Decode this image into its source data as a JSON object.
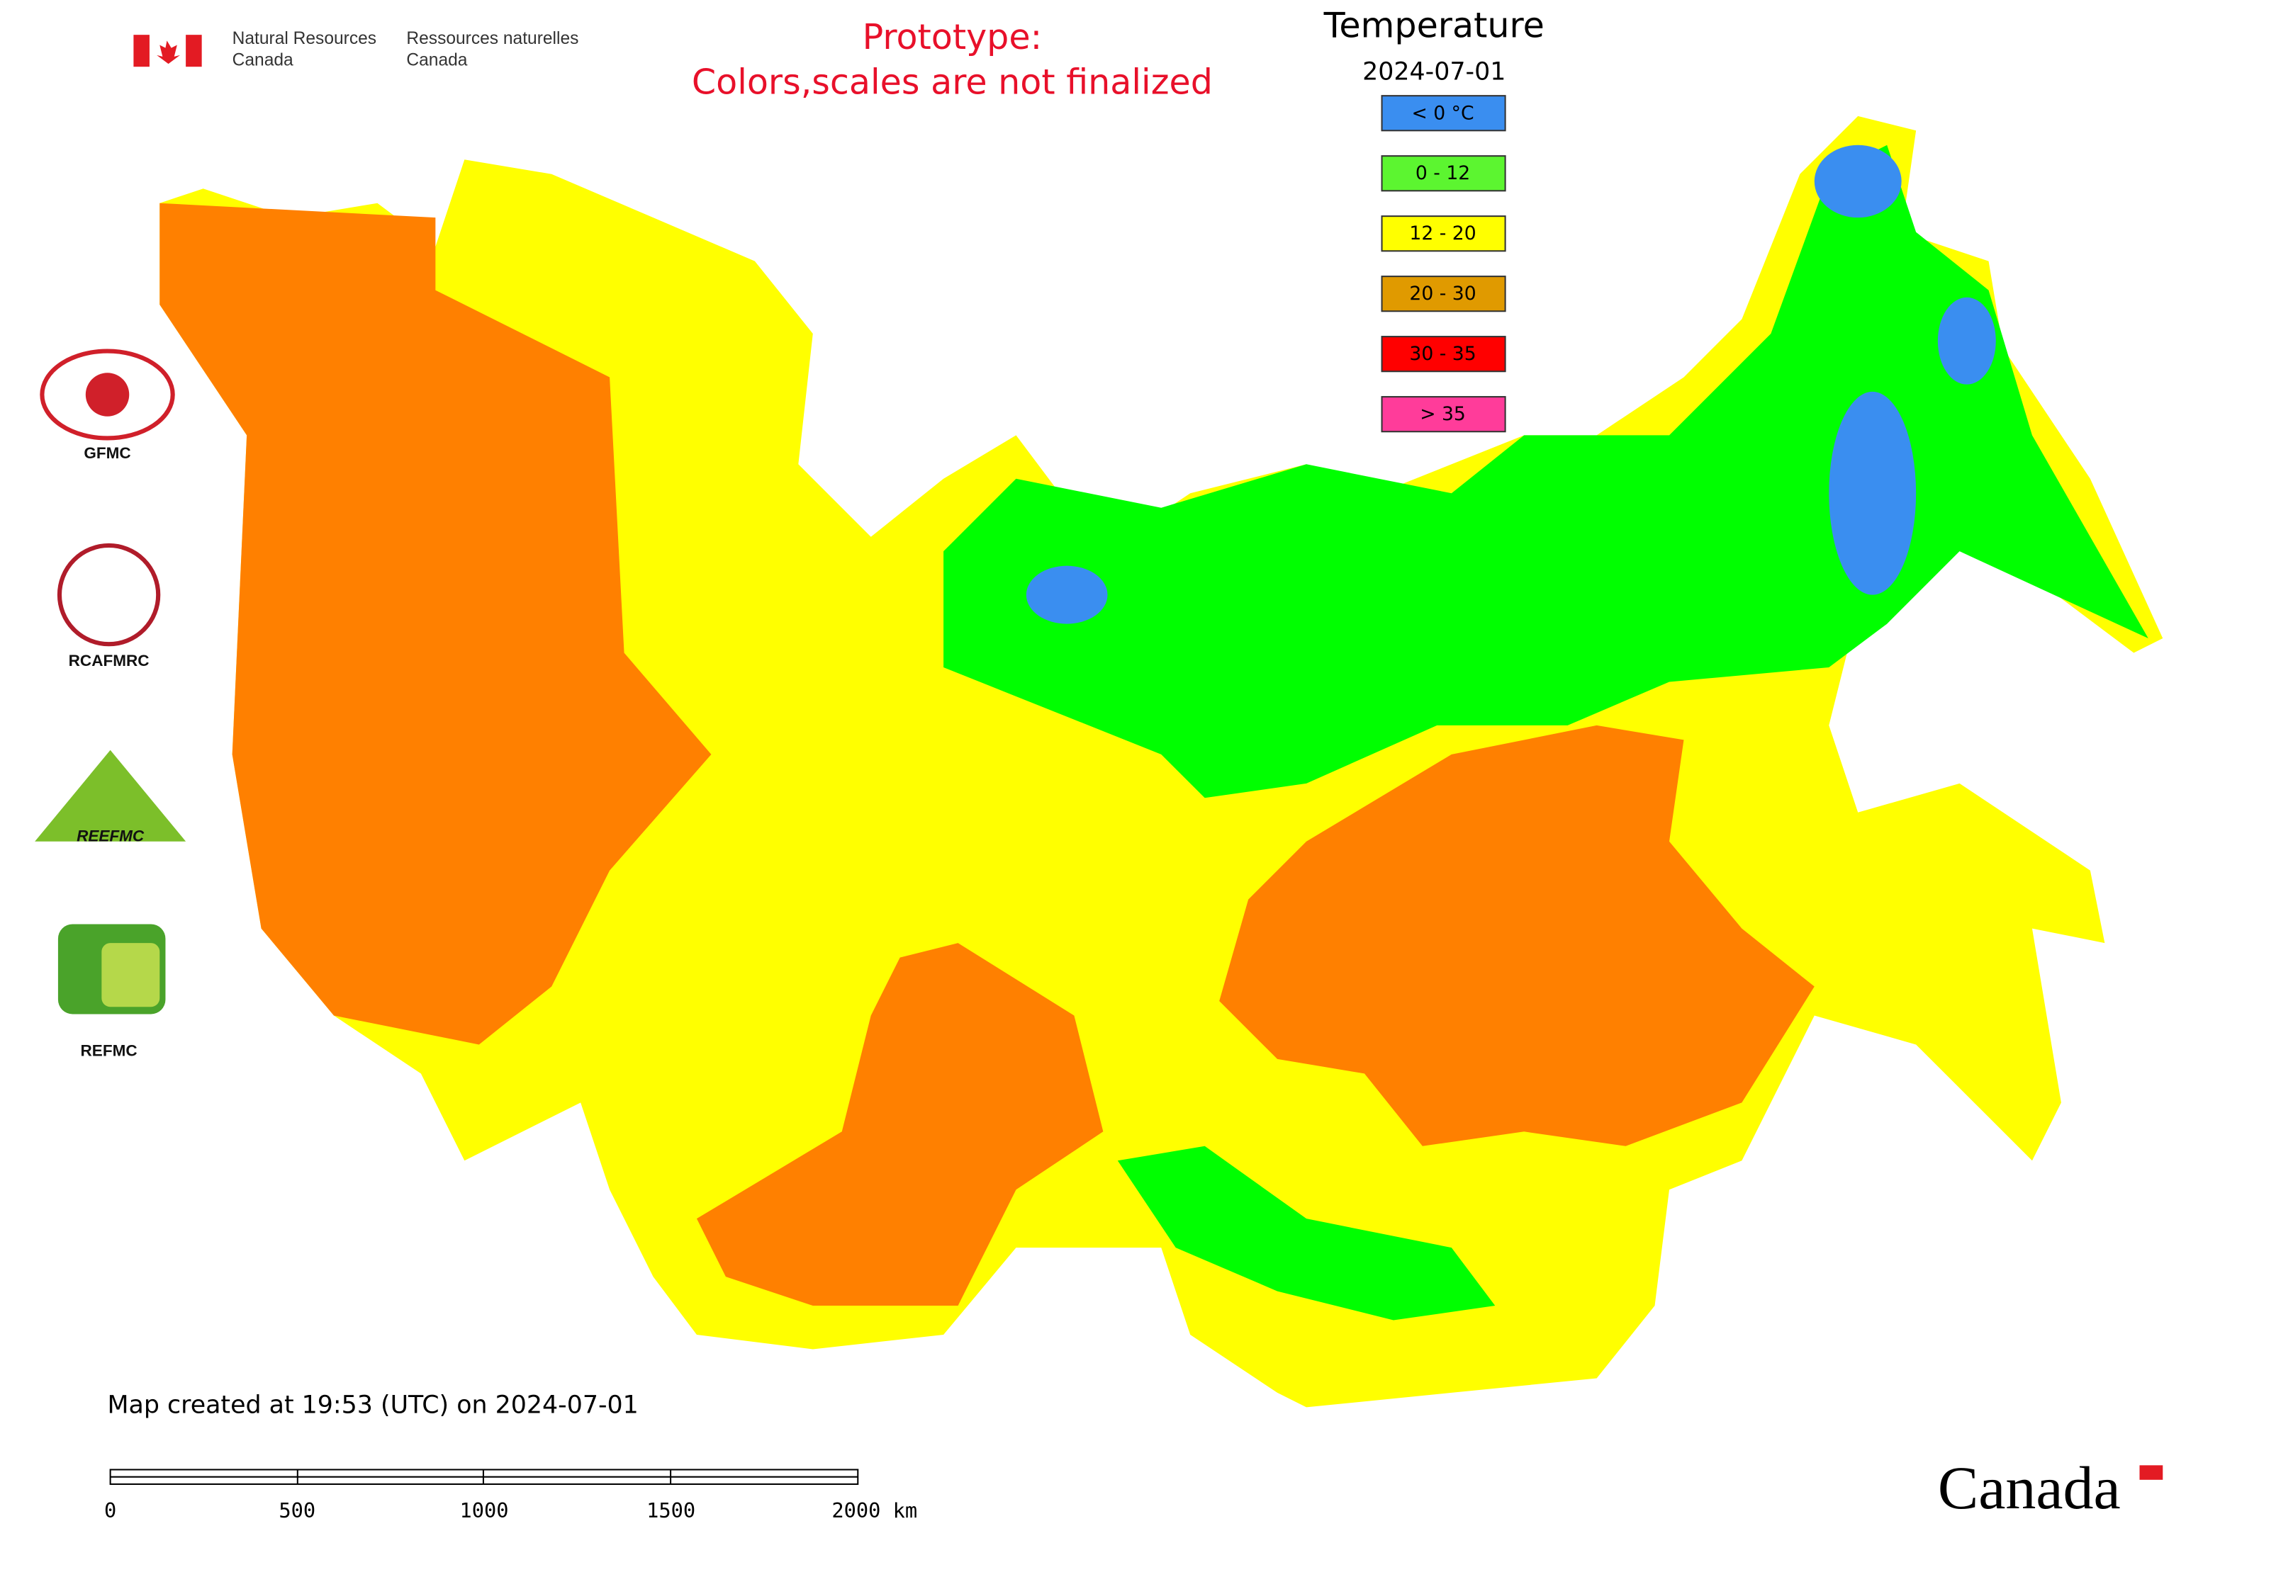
{
  "header": {
    "department_en": [
      "Natural Resources",
      "Canada"
    ],
    "department_fr": [
      "Ressources naturelles",
      "Canada"
    ],
    "notice": [
      "Prototype:",
      "Colors,scales are not finalized"
    ]
  },
  "legend": {
    "title": "Temperature",
    "date": "2024-07-01",
    "items": [
      {
        "label": "< 0 °C",
        "color": "#3a8ef0"
      },
      {
        "label": "0 - 12",
        "color": "#5cf530"
      },
      {
        "label": "12 - 20",
        "color": "#ffff00"
      },
      {
        "label": "20 - 30",
        "color": "#e09a00"
      },
      {
        "label": "30 - 35",
        "color": "#ff0000"
      },
      {
        "label": "> 35",
        "color": "#ff3c9a"
      }
    ]
  },
  "logos": [
    "GFMC",
    "RCAFMRC",
    "REEFMC",
    "REFMC"
  ],
  "footer": {
    "created": "Map created at 19:53 (UTC) on 2024-07-01",
    "scale_labels": [
      "0",
      "500",
      "1000",
      "1500",
      "2000 km"
    ],
    "wordmark": "Canada"
  }
}
